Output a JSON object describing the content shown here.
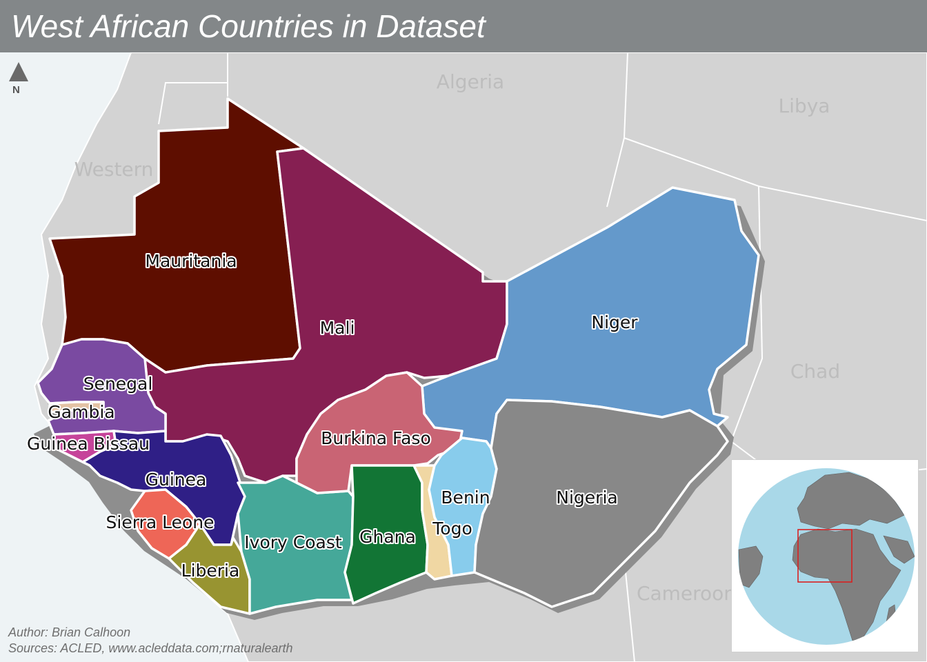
{
  "title": "West African Countries in Dataset",
  "north_label": "N",
  "credits": {
    "author": "Author: Brian Calhoon",
    "sources": "Sources: ACLED, www.acleddata.com;rnaturalearth"
  },
  "neighbors": [
    {
      "key": "algeria",
      "label": "Algeria"
    },
    {
      "key": "libya",
      "label": "Libya"
    },
    {
      "key": "western_sahara",
      "label": "Western"
    },
    {
      "key": "chad",
      "label": "Chad"
    },
    {
      "key": "cameroon",
      "label": "Cameroon"
    }
  ],
  "countries": [
    {
      "key": "mauritania",
      "label": "Mauritania",
      "color": "#5e0e00"
    },
    {
      "key": "mali",
      "label": "Mali",
      "color": "#861f52"
    },
    {
      "key": "niger",
      "label": "Niger",
      "color": "#6499cb"
    },
    {
      "key": "senegal",
      "label": "Senegal",
      "color": "#7a4aa1"
    },
    {
      "key": "gambia",
      "label": "Gambia",
      "color": "#e3c2a4"
    },
    {
      "key": "guinea_bissau",
      "label": "Guinea Bissau",
      "color": "#c6449a"
    },
    {
      "key": "guinea",
      "label": "Guinea",
      "color": "#2f1f86"
    },
    {
      "key": "sierra_leone",
      "label": "Sierra Leone",
      "color": "#ee6657"
    },
    {
      "key": "liberia",
      "label": "Liberia",
      "color": "#989431"
    },
    {
      "key": "ivory_coast",
      "label": "Ivory Coast",
      "color": "#45a899"
    },
    {
      "key": "burkina_faso",
      "label": "Burkina Faso",
      "color": "#c96474"
    },
    {
      "key": "ghana",
      "label": "Ghana",
      "color": "#127535"
    },
    {
      "key": "togo",
      "label": "Togo",
      "color": "#f0d7a3"
    },
    {
      "key": "benin",
      "label": "Benin",
      "color": "#88ccec"
    },
    {
      "key": "nigeria",
      "label": "Nigeria",
      "color": "#888888"
    }
  ],
  "colors": {
    "ocean": "#eef3f5",
    "land_other": "#d3d3d3",
    "title_bar": "#838789",
    "globe_ocean": "#a9d8e8",
    "globe_land": "#808080",
    "inset_frame": "#d92020"
  }
}
